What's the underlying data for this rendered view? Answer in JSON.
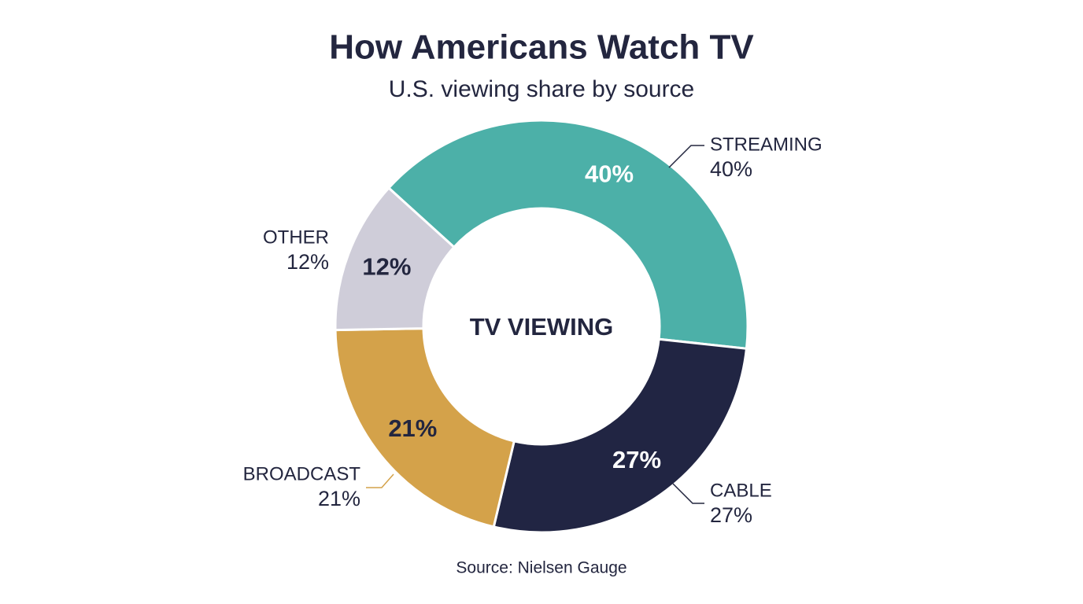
{
  "chart_data": {
    "type": "pie",
    "title": "How Americans Watch TV",
    "subtitle": "U.S. viewing share by source",
    "center_label": "TV VIEWING",
    "source": "Source: Nielsen Gauge",
    "categories": [
      "STREAMING",
      "CABLE",
      "BROADCAST",
      "OTHER"
    ],
    "values": [
      40,
      27,
      21,
      12
    ],
    "value_labels": [
      "40%",
      "27%",
      "21%",
      "12%"
    ],
    "colors": [
      "#4cb0a8",
      "#212543",
      "#d4a24a",
      "#cfcdd9"
    ]
  }
}
